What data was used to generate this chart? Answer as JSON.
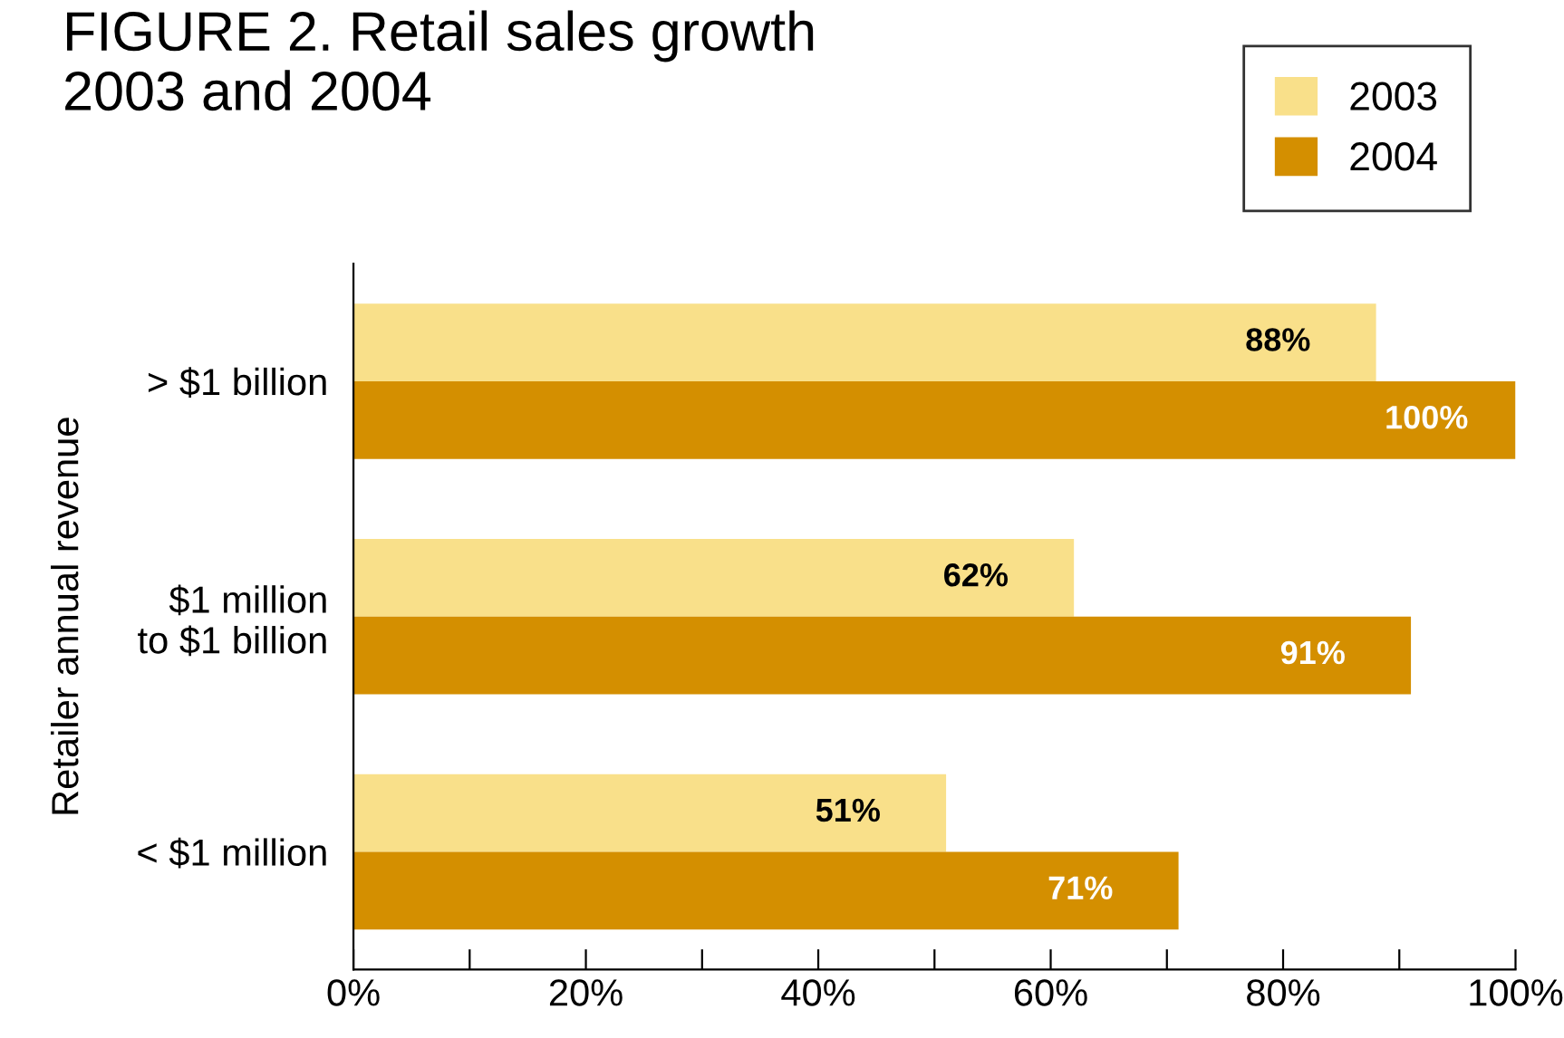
{
  "chart_data": {
    "type": "bar",
    "orientation": "horizontal",
    "title": "FIGURE 2. Retail sales growth\n2003 and 2004",
    "ylabel": "Retailer annual revenue",
    "categories": [
      "> $1 billion",
      "$1 million\nto $1 billion",
      "< $1 million"
    ],
    "series": [
      {
        "name": "2003",
        "color": "#f9e08a",
        "values": [
          88,
          62,
          51
        ],
        "value_labels": [
          "88%",
          "62%",
          "51%"
        ]
      },
      {
        "name": "2004",
        "color": "#d48f00",
        "values": [
          100,
          91,
          71
        ],
        "value_labels": [
          "100%",
          "91%",
          "71%"
        ]
      }
    ],
    "xlim": [
      0,
      100
    ],
    "xticks": [
      {
        "value": 0,
        "label": "0%"
      },
      {
        "value": 10,
        "label": null
      },
      {
        "value": 20,
        "label": "20%"
      },
      {
        "value": 30,
        "label": null
      },
      {
        "value": 40,
        "label": "40%"
      },
      {
        "value": 50,
        "label": null
      },
      {
        "value": 60,
        "label": "60%"
      },
      {
        "value": 70,
        "label": null
      },
      {
        "value": 80,
        "label": "80%"
      },
      {
        "value": 90,
        "label": null
      },
      {
        "value": 100,
        "label": "100%"
      }
    ],
    "grid": false,
    "legend": "top right"
  }
}
